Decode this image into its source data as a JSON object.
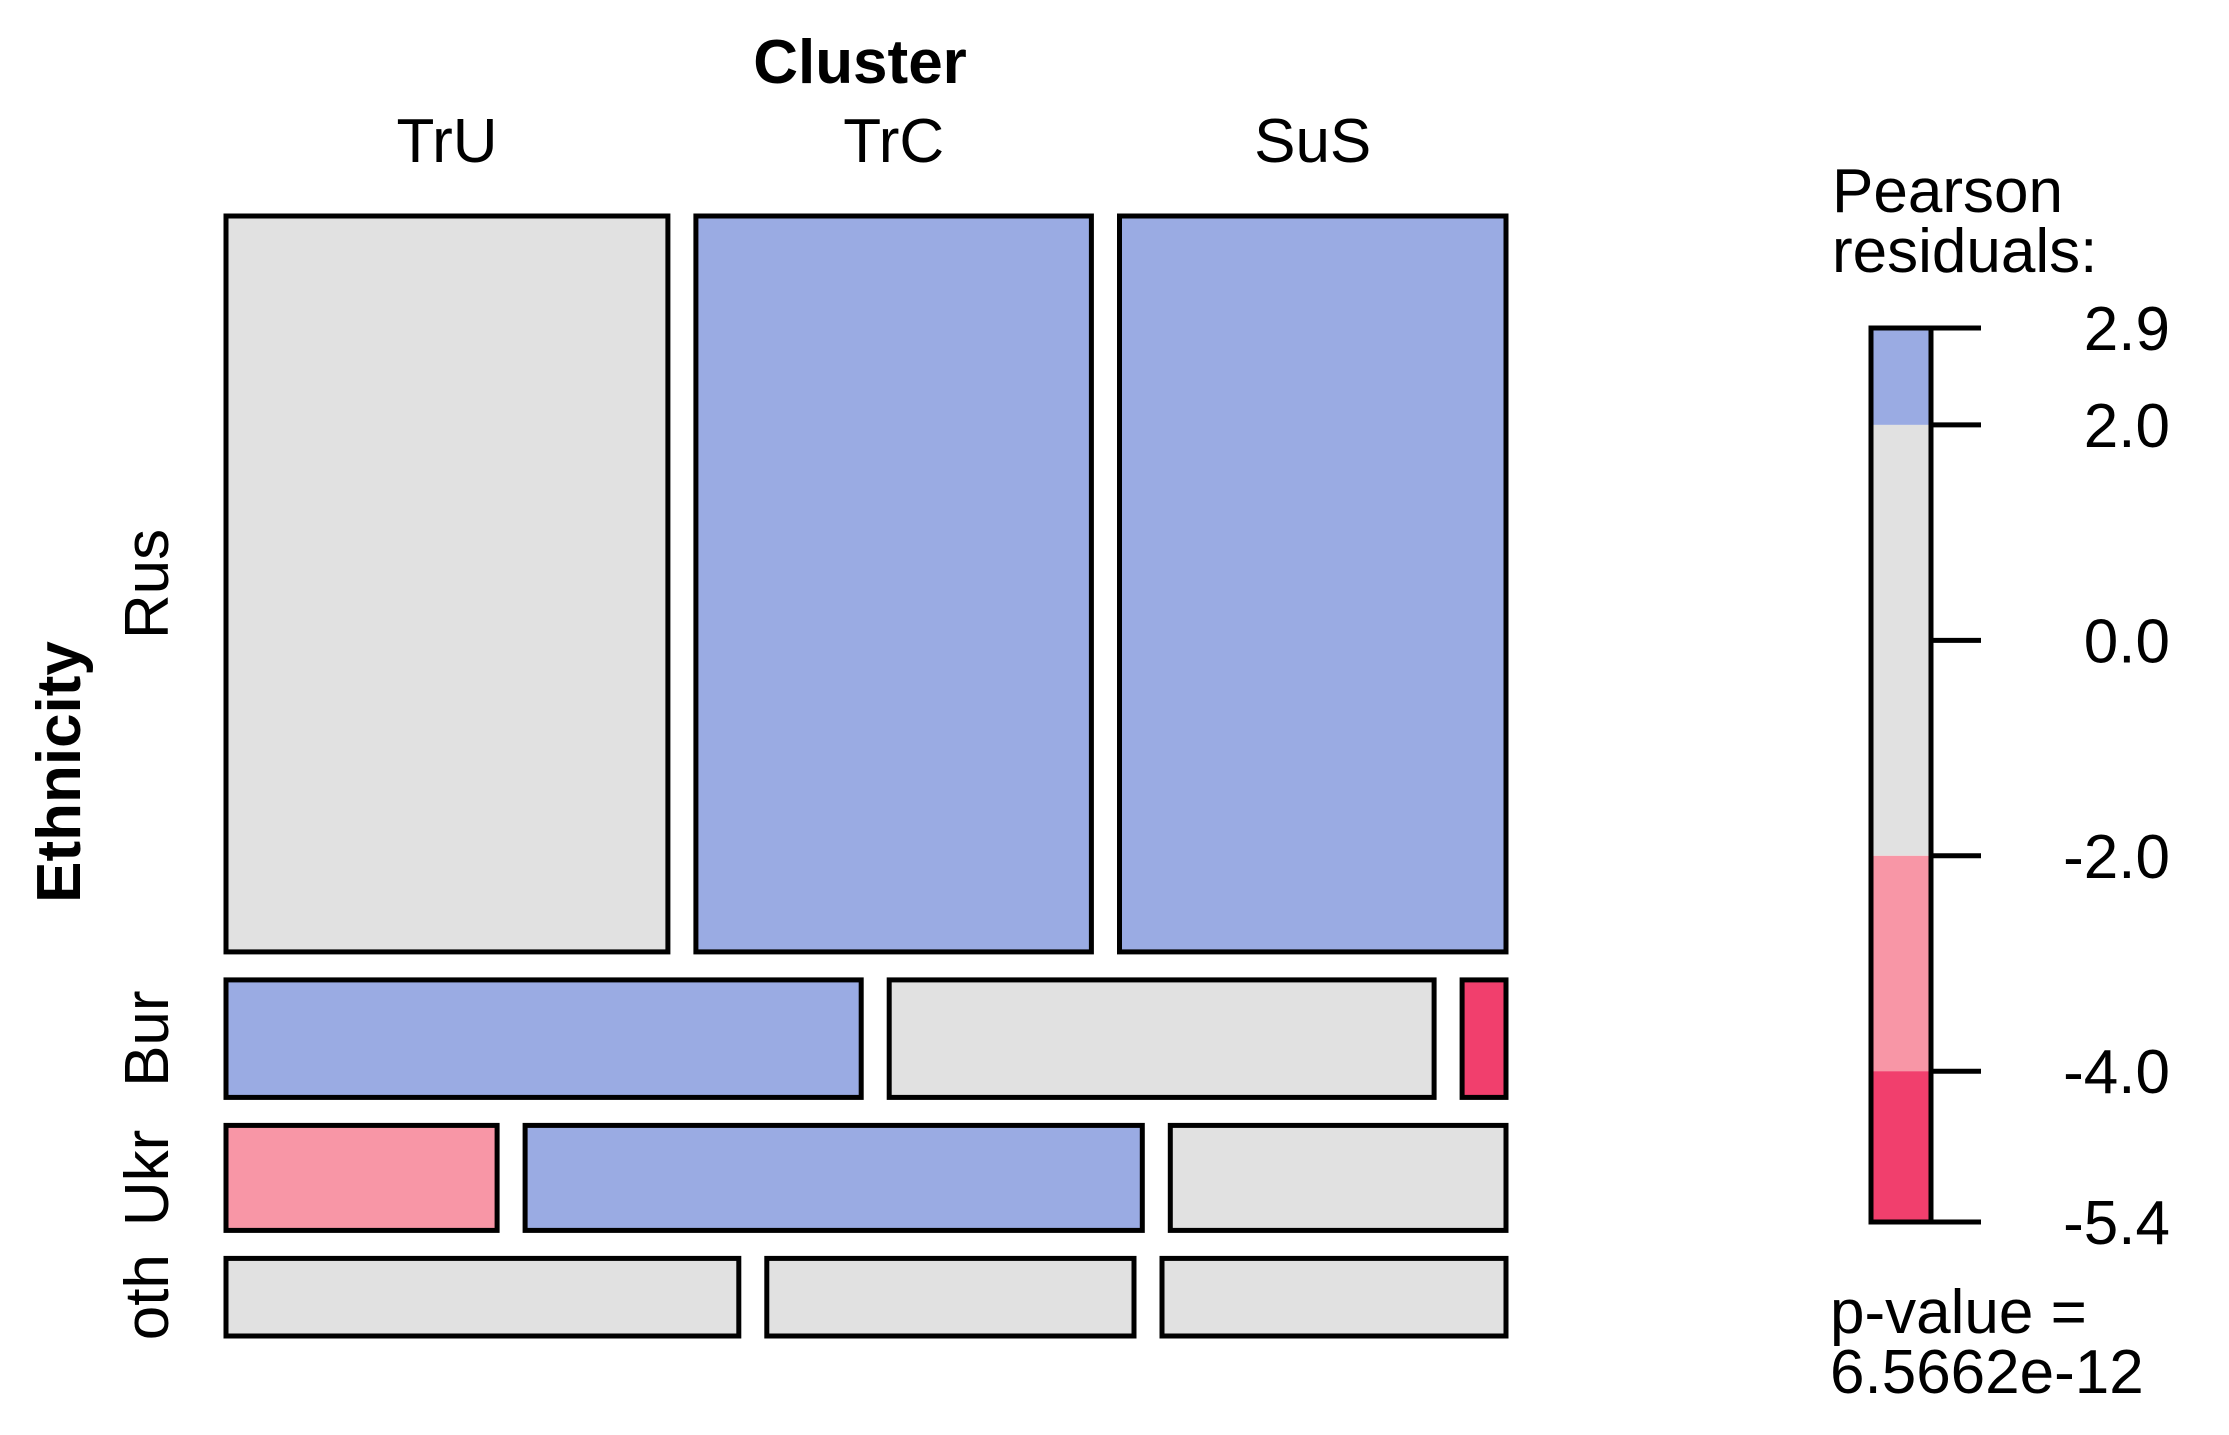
{
  "chart_data": {
    "type": "mosaic",
    "column_variable": "Cluster",
    "row_variable": "Ethnicity",
    "columns": [
      "TrU",
      "TrC",
      "SuS"
    ],
    "rows": [
      "Rus",
      "Bur",
      "Ukr",
      "oth"
    ],
    "row_proportions": [
      0.645,
      0.103,
      0.092,
      0.068
    ],
    "cells": [
      {
        "row": "Rus",
        "col": "TrU",
        "share": 0.343,
        "shade": "neutral"
      },
      {
        "row": "Rus",
        "col": "TrC",
        "share": 0.307,
        "shade": "pos_high"
      },
      {
        "row": "Rus",
        "col": "SuS",
        "share": 0.3,
        "shade": "pos_high"
      },
      {
        "row": "Bur",
        "col": "TrU",
        "share": 0.492,
        "shade": "pos_high"
      },
      {
        "row": "Bur",
        "col": "TrC",
        "share": 0.422,
        "shade": "neutral"
      },
      {
        "row": "Bur",
        "col": "SuS",
        "share": 0.034,
        "shade": "neg_high"
      },
      {
        "row": "Ukr",
        "col": "TrU",
        "share": 0.21,
        "shade": "neg_mid"
      },
      {
        "row": "Ukr",
        "col": "TrC",
        "share": 0.478,
        "shade": "pos_high"
      },
      {
        "row": "Ukr",
        "col": "SuS",
        "share": 0.26,
        "shade": "neutral"
      },
      {
        "row": "oth",
        "col": "TrU",
        "share": 0.398,
        "shade": "neutral"
      },
      {
        "row": "oth",
        "col": "TrC",
        "share": 0.285,
        "shade": "neutral"
      },
      {
        "row": "oth",
        "col": "SuS",
        "share": 0.267,
        "shade": "neutral"
      }
    ],
    "legend": {
      "title_lines": [
        "Pearson",
        "residuals:"
      ],
      "range": [
        -5.4,
        2.9
      ],
      "ticks": [
        "2.9",
        "2.0",
        "0.0",
        "-2.0",
        "-4.0",
        "-5.4"
      ],
      "bands": [
        {
          "from": 2.0,
          "to": 2.9,
          "shade": "pos_high"
        },
        {
          "from": -2.0,
          "to": 2.0,
          "shade": "neutral"
        },
        {
          "from": -4.0,
          "to": -2.0,
          "shade": "neg_mid"
        },
        {
          "from": -5.4,
          "to": -4.0,
          "shade": "neg_high"
        }
      ],
      "pvalue_lines": [
        "p-value =",
        "6.5662e-12"
      ]
    },
    "colors": {
      "pos_high": "#9aabe3",
      "neutral": "#e1e1e1",
      "neg_mid": "#f896a6",
      "neg_high": "#f13f6d"
    }
  }
}
